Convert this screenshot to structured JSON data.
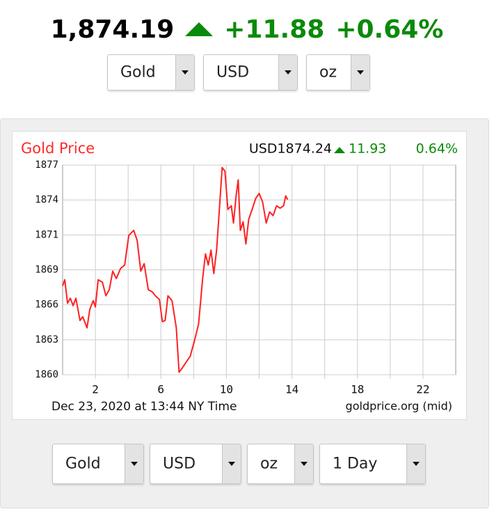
{
  "header": {
    "price": "1,874.19",
    "change": "+11.88",
    "change_pct": "+0.64%"
  },
  "top_selects": [
    "Gold",
    "USD",
    "oz"
  ],
  "bottom_selects": [
    "Gold",
    "USD",
    "oz",
    "1 Day"
  ],
  "chart_data": {
    "type": "line",
    "title": "Gold Price",
    "price_label": "USD1874.24",
    "change": "11.93",
    "change_pct": "0.64%",
    "unit_label": "oz",
    "date_label": "Dec 23, 2020 at 13:44 NY Time",
    "source": "goldprice.org (mid)",
    "color": "#ff2020",
    "grid": true,
    "xlim": [
      0,
      24
    ],
    "xticks": [
      2,
      6,
      10,
      14,
      18,
      22
    ],
    "x_grid": [
      4,
      8,
      12,
      16,
      20
    ],
    "ylim": [
      1860,
      1877
    ],
    "yticks": [
      {
        "value": 1860,
        "label": "1860"
      },
      {
        "value": 1862.83,
        "label": "1863"
      },
      {
        "value": 1865.67,
        "label": "1866"
      },
      {
        "value": 1868.5,
        "label": "1869"
      },
      {
        "value": 1871.33,
        "label": "1871"
      },
      {
        "value": 1874.17,
        "label": "1874"
      },
      {
        "value": 1877,
        "label": "1877"
      }
    ],
    "x": [
      0,
      0.13,
      0.3,
      0.47,
      0.64,
      0.81,
      1.06,
      1.23,
      1.49,
      1.66,
      1.87,
      2.0,
      2.17,
      2.43,
      2.64,
      2.85,
      3.06,
      3.28,
      3.53,
      3.79,
      4.04,
      4.34,
      4.55,
      4.77,
      4.98,
      5.23,
      5.49,
      5.66,
      5.91,
      6.09,
      6.26,
      6.43,
      6.68,
      6.94,
      7.11,
      7.28,
      7.53,
      7.79,
      8.04,
      8.3,
      8.55,
      8.72,
      8.89,
      9.06,
      9.23,
      9.4,
      9.57,
      9.74,
      9.91,
      10.09,
      10.3,
      10.43,
      10.6,
      10.72,
      10.85,
      11.02,
      11.19,
      11.36,
      11.57,
      11.79,
      12.0,
      12.21,
      12.43,
      12.64,
      12.85,
      13.06,
      13.28,
      13.49,
      13.62,
      13.74
    ],
    "values": [
      1867.2,
      1867.7,
      1865.8,
      1866.2,
      1865.6,
      1866.2,
      1864.4,
      1864.7,
      1863.8,
      1865.3,
      1866.0,
      1865.5,
      1867.7,
      1867.5,
      1866.4,
      1866.9,
      1868.4,
      1867.8,
      1868.6,
      1868.9,
      1871.3,
      1871.7,
      1870.9,
      1868.4,
      1869.0,
      1866.9,
      1866.7,
      1866.4,
      1866.1,
      1864.3,
      1864.4,
      1866.4,
      1866.0,
      1863.8,
      1860.2,
      1860.5,
      1861.0,
      1861.5,
      1862.7,
      1864.1,
      1867.8,
      1869.8,
      1868.9,
      1870.1,
      1868.2,
      1870.1,
      1873.4,
      1876.8,
      1876.5,
      1873.4,
      1873.7,
      1872.3,
      1874.6,
      1875.8,
      1871.7,
      1872.4,
      1870.6,
      1872.6,
      1873.4,
      1874.3,
      1874.7,
      1874.0,
      1872.3,
      1873.2,
      1872.9,
      1873.7,
      1873.5,
      1873.7,
      1874.5,
      1874.2
    ]
  }
}
